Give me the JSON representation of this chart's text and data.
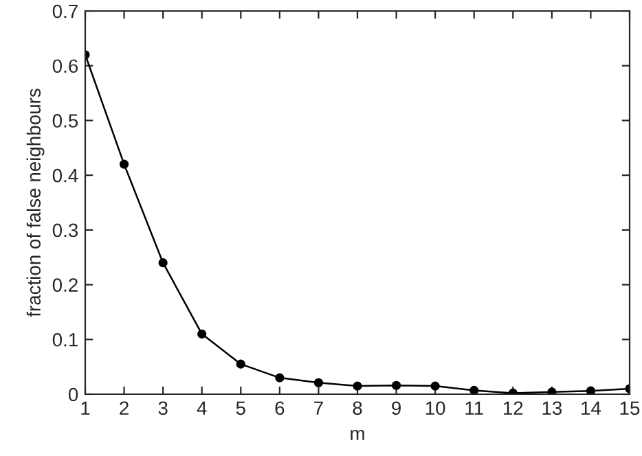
{
  "chart_data": {
    "type": "line",
    "xlabel": "m",
    "ylabel": "fraction of false neighbours",
    "x": [
      1,
      2,
      3,
      4,
      5,
      6,
      7,
      8,
      9,
      10,
      11,
      12,
      13,
      14,
      15
    ],
    "series": [
      {
        "color": "#000000",
        "values": [
          0.62,
          0.42,
          0.24,
          0.11,
          0.055,
          0.03,
          0.021,
          0.015,
          0.016,
          0.015,
          0.007,
          0.002,
          0.004,
          0.006,
          0.01
        ]
      }
    ],
    "marker": "circle",
    "line_style": "solid",
    "xlim": [
      1,
      15
    ],
    "xticks": [
      1,
      2,
      3,
      4,
      5,
      6,
      7,
      8,
      9,
      10,
      11,
      12,
      13,
      14,
      15
    ],
    "ylim": [
      0,
      0.7
    ],
    "yticks": [
      0,
      0.1,
      0.2,
      0.3,
      0.4,
      0.5,
      0.6,
      0.7
    ],
    "grid": false,
    "legend": false
  }
}
